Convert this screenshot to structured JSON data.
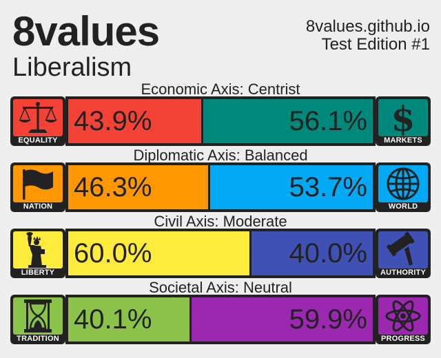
{
  "header": {
    "brand": "8values",
    "ideology": "Liberalism",
    "site": "8values.github.io",
    "edition": "Test Edition #1"
  },
  "axes": [
    {
      "title": "Economic Axis: Centrist",
      "left": {
        "label": "EQUALITY",
        "icon": "scales-icon",
        "color": "#f44336",
        "percent": 43.9,
        "text": "43.9%"
      },
      "right": {
        "label": "MARKETS",
        "icon": "dollar-icon",
        "color": "#00897b",
        "percent": 56.1,
        "text": "56.1%"
      }
    },
    {
      "title": "Diplomatic Axis: Balanced",
      "left": {
        "label": "NATION",
        "icon": "flag-icon",
        "color": "#ff9800",
        "percent": 46.3,
        "text": "46.3%"
      },
      "right": {
        "label": "WORLD",
        "icon": "globe-icon",
        "color": "#03a9f4",
        "percent": 53.7,
        "text": "53.7%"
      }
    },
    {
      "title": "Civil Axis: Moderate",
      "left": {
        "label": "LIBERTY",
        "icon": "statue-of-liberty-icon",
        "color": "#ffeb3b",
        "percent": 60.0,
        "text": "60.0%"
      },
      "right": {
        "label": "AUTHORITY",
        "icon": "gavel-icon",
        "color": "#3f51b5",
        "percent": 40.0,
        "text": "40.0%"
      }
    },
    {
      "title": "Societal Axis: Neutral",
      "left": {
        "label": "TRADITION",
        "icon": "hourglass-icon",
        "color": "#8bc34a",
        "percent": 40.1,
        "text": "40.1%"
      },
      "right": {
        "label": "PROGRESS",
        "icon": "atom-icon",
        "color": "#9c27b0",
        "percent": 59.9,
        "text": "59.9%"
      }
    }
  ]
}
